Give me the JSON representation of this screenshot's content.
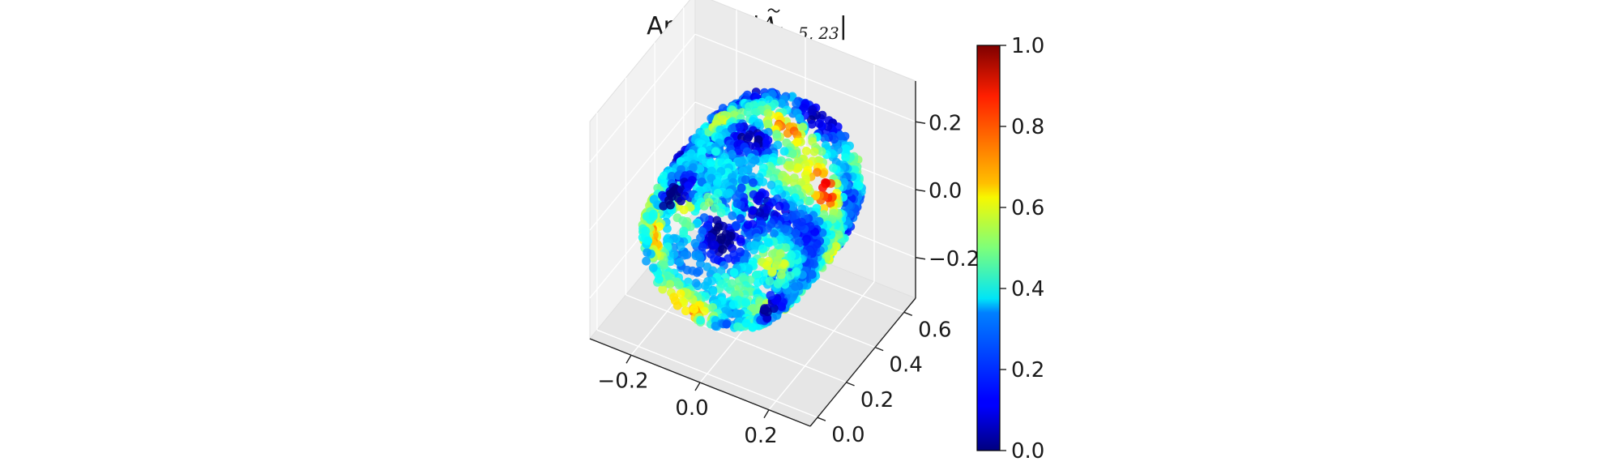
{
  "chart_data": {
    "type": "scatter",
    "projection": "3d",
    "title": {
      "prefix": "Analytic |",
      "symbol": "A",
      "subscript": "k, 5, 23",
      "suffix": "|"
    },
    "colormap": "jet",
    "color_range": [
      0.0,
      1.0
    ],
    "colorbar": {
      "placement": "right",
      "ticks": [
        "0.0",
        "0.2",
        "0.4",
        "0.6",
        "0.8",
        "1.0"
      ],
      "tick_values": [
        0.0,
        0.2,
        0.4,
        0.6,
        0.8,
        1.0
      ]
    },
    "x_axis": {
      "ticks": [
        "−0.2",
        "0.0",
        "0.2"
      ],
      "tick_values": [
        -0.2,
        0.0,
        0.2
      ],
      "range": [
        -0.32,
        0.32
      ]
    },
    "y_axis": {
      "ticks": [
        "0.0",
        "0.2",
        "0.4",
        "0.6"
      ],
      "tick_values": [
        0.0,
        0.2,
        0.4,
        0.6
      ],
      "range": [
        -0.05,
        0.68
      ]
    },
    "z_axis": {
      "ticks": [
        "−0.2",
        "0.0",
        "0.2"
      ],
      "tick_values": [
        -0.2,
        0.0,
        0.2
      ],
      "range": [
        -0.32,
        0.32
      ]
    },
    "grid": true,
    "point_cloud": {
      "shape": "tube",
      "x_center": 0.0,
      "radius": 0.22,
      "y_range": [
        0.0,
        0.62
      ],
      "hotspots": [
        {
          "x": 0.05,
          "y": 0.45,
          "z": 0.22,
          "value": 0.95
        },
        {
          "x": 0.18,
          "y": 0.38,
          "z": 0.1,
          "value": 0.92
        },
        {
          "x": -0.21,
          "y": 0.1,
          "z": -0.05,
          "value": 0.78
        },
        {
          "x": -0.05,
          "y": 0.05,
          "z": -0.2,
          "value": 0.75
        },
        {
          "x": 0.15,
          "y": 0.2,
          "z": -0.18,
          "value": 0.7
        }
      ],
      "coldspots": [
        {
          "x": -0.02,
          "y": 0.18,
          "z": 0.02,
          "value": 0.02
        },
        {
          "x": 0.08,
          "y": 0.55,
          "z": 0.18,
          "value": 0.05
        }
      ]
    }
  }
}
